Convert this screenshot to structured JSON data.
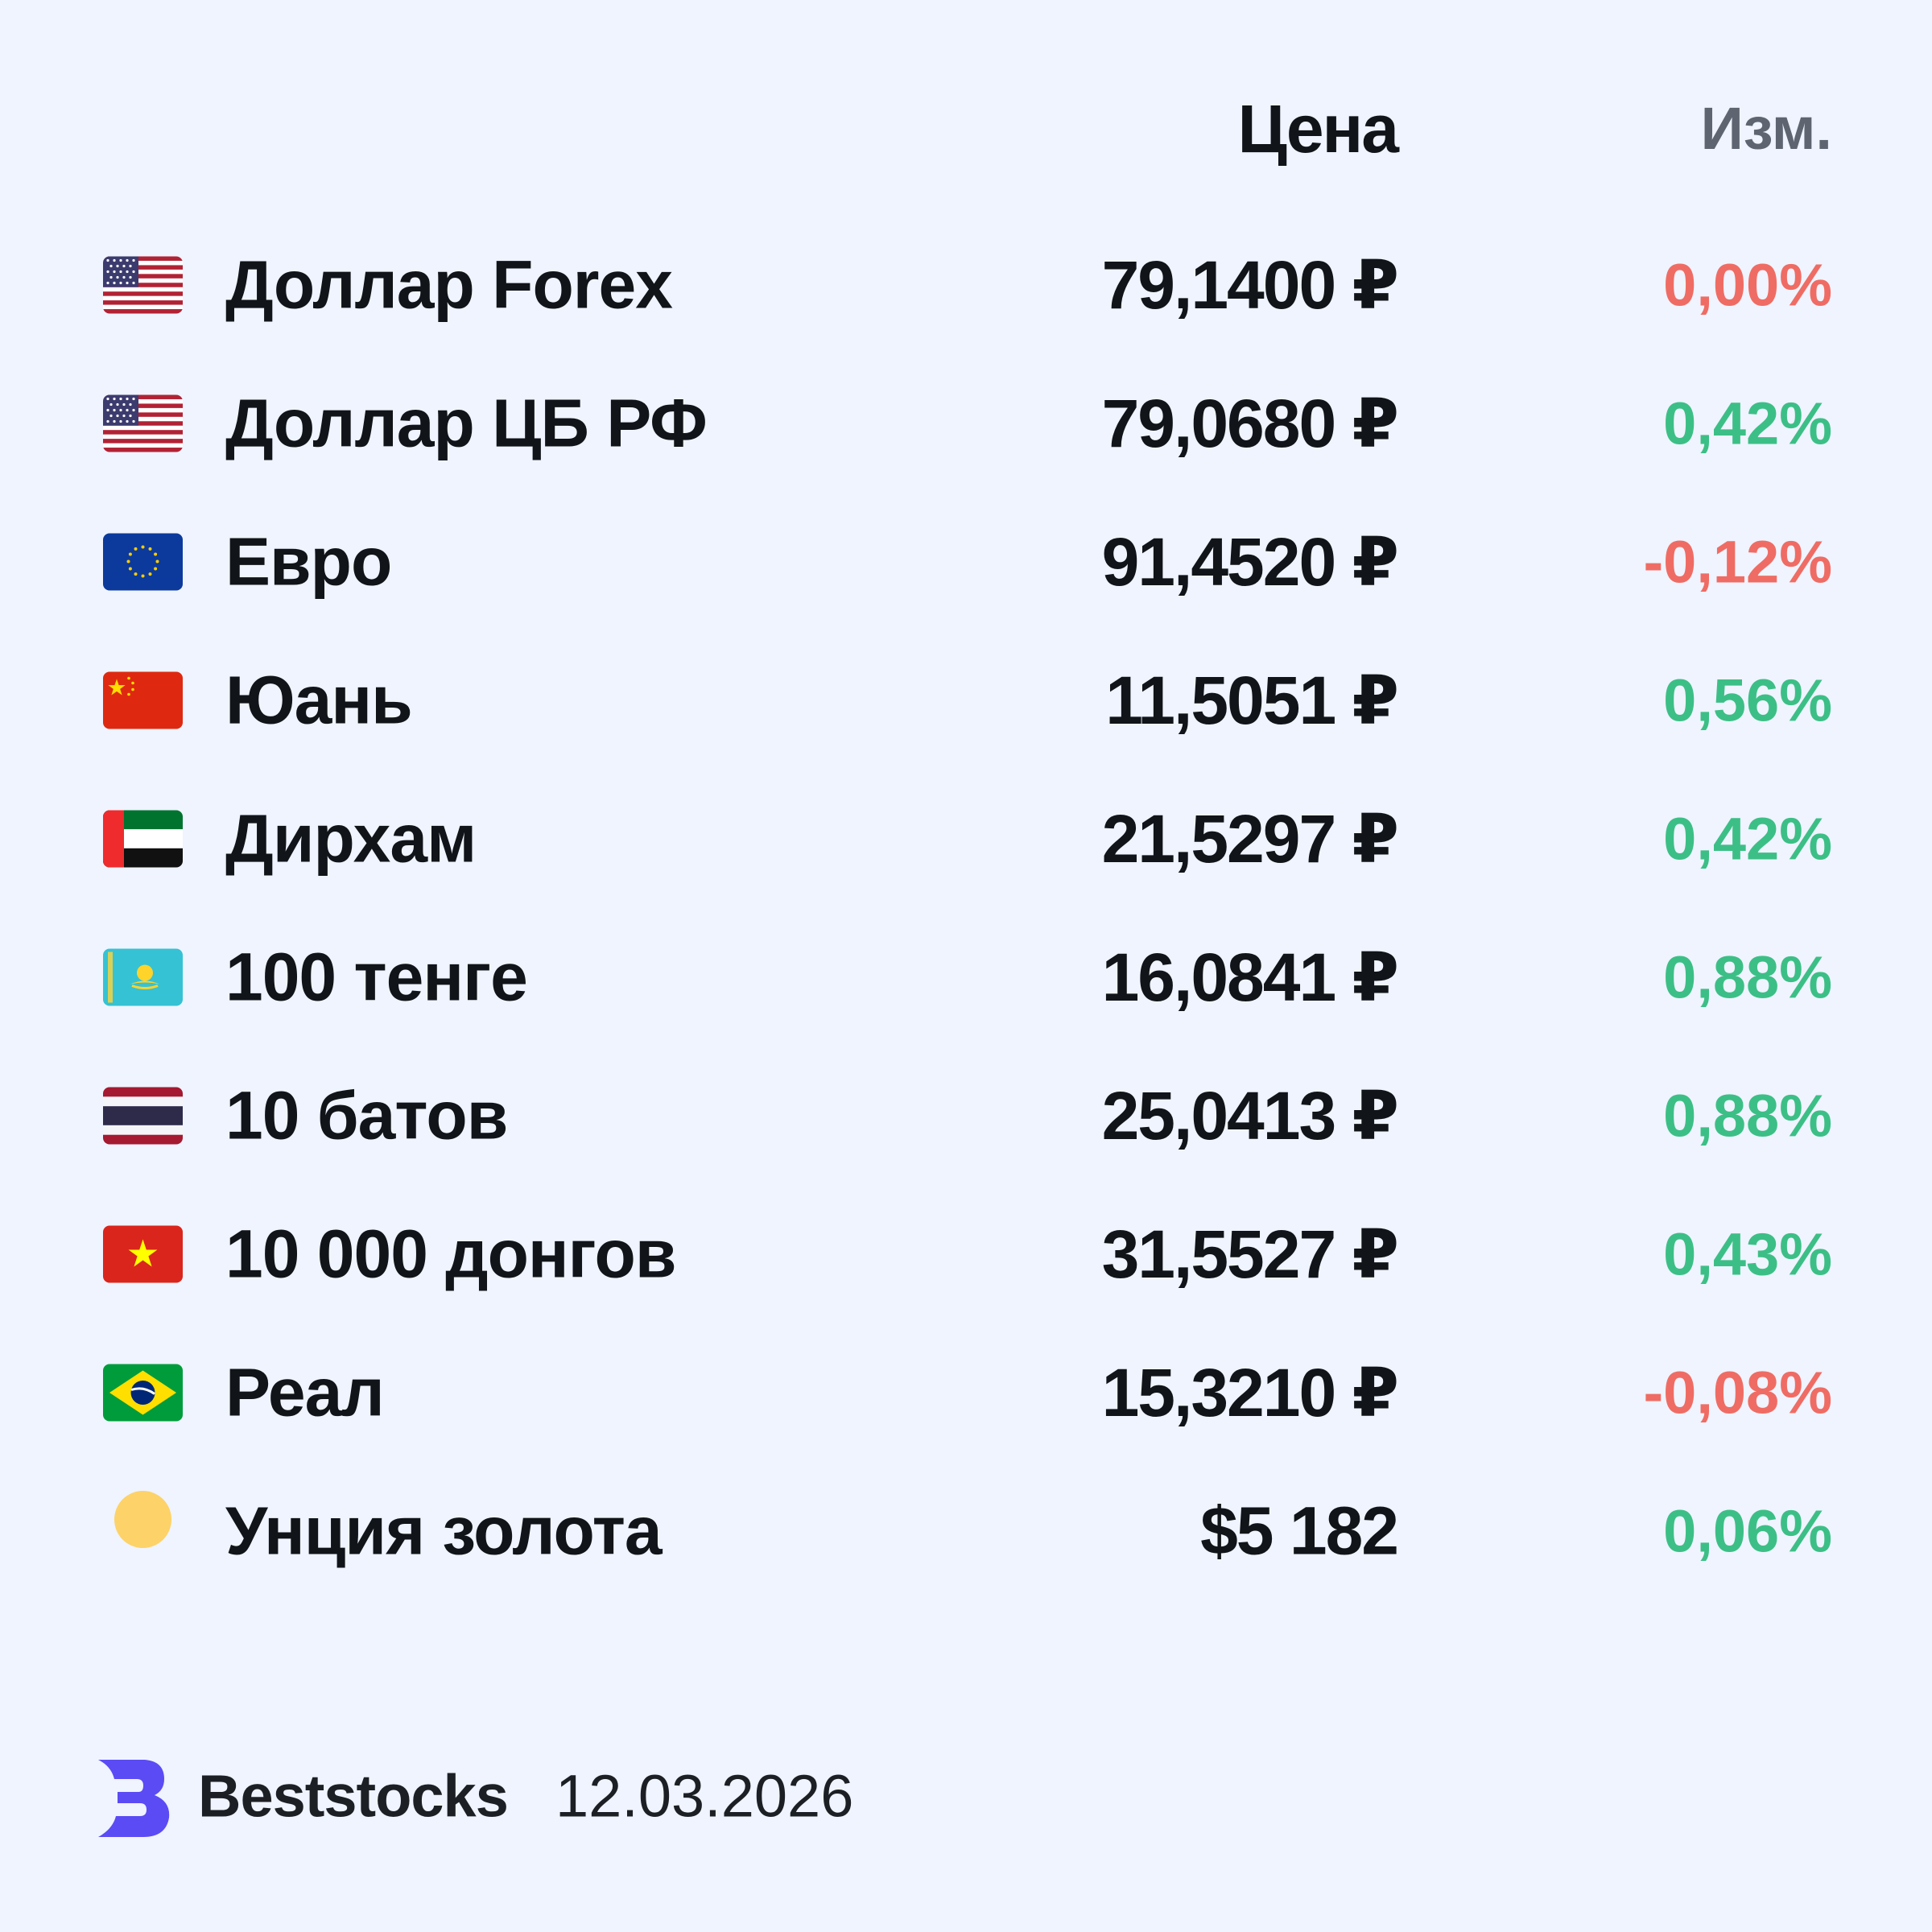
{
  "header": {
    "price_label": "Цена",
    "change_label": "Изм."
  },
  "colors": {
    "positive": "#3cbf86",
    "negative": "#ef6c64",
    "background": "#eff4fe"
  },
  "rows": [
    {
      "icon": "us-flag-icon",
      "name": "Доллар Forex",
      "price": "79,1400 ₽",
      "change": "0,00%",
      "trend": "negative"
    },
    {
      "icon": "us-flag-icon",
      "name": "Доллар ЦБ РФ",
      "price": "79,0680 ₽",
      "change": "0,42%",
      "trend": "positive"
    },
    {
      "icon": "eu-flag-icon",
      "name": "Евро",
      "price": "91,4520 ₽",
      "change": "-0,12%",
      "trend": "negative"
    },
    {
      "icon": "cn-flag-icon",
      "name": "Юань",
      "price": "11,5051 ₽",
      "change": "0,56%",
      "trend": "positive"
    },
    {
      "icon": "ae-flag-icon",
      "name": "Дирхам",
      "price": "21,5297 ₽",
      "change": "0,42%",
      "trend": "positive"
    },
    {
      "icon": "kz-flag-icon",
      "name": "100 тенге",
      "price": "16,0841 ₽",
      "change": "0,88%",
      "trend": "positive"
    },
    {
      "icon": "th-flag-icon",
      "name": "10 батов",
      "price": "25,0413 ₽",
      "change": "0,88%",
      "trend": "positive"
    },
    {
      "icon": "vn-flag-icon",
      "name": "10 000 донгов",
      "price": "31,5527 ₽",
      "change": "0,43%",
      "trend": "positive"
    },
    {
      "icon": "br-flag-icon",
      "name": "Реал",
      "price": "15,3210 ₽",
      "change": "-0,08%",
      "trend": "negative"
    },
    {
      "icon": "gold-coin-icon",
      "name": "Унция золота",
      "price": "$5 182",
      "change": "0,06%",
      "trend": "positive"
    }
  ],
  "footer": {
    "brand": "Beststocks",
    "date": "12.03.2026",
    "logo_icon": "beststocks-logo-icon"
  }
}
